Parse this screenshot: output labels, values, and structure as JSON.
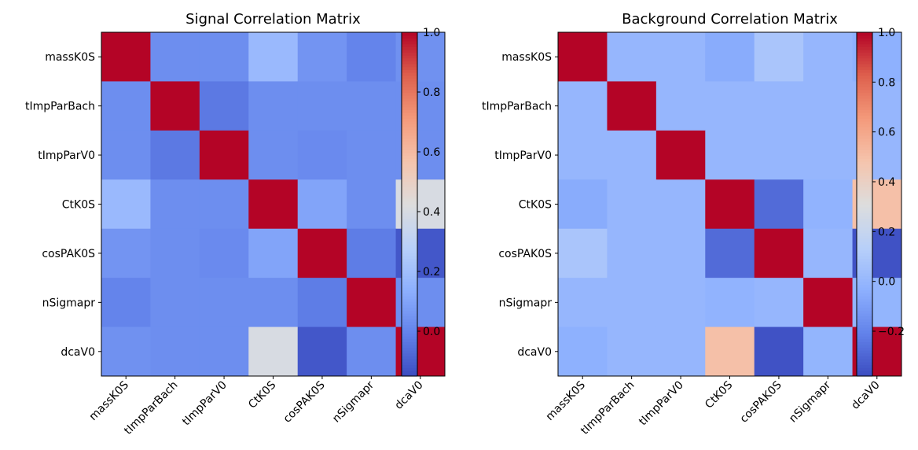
{
  "chart_data": [
    {
      "type": "heatmap",
      "title": "Signal Correlation Matrix",
      "labels": [
        "massK0S",
        "tImpParBach",
        "tImpParV0",
        "CtK0S",
        "cosPAK0S",
        "nSigmapr",
        "dcaV0"
      ],
      "matrix": [
        [
          1.0,
          0.03,
          0.03,
          0.18,
          0.05,
          0.0,
          0.04
        ],
        [
          0.03,
          1.0,
          -0.03,
          0.03,
          0.03,
          0.03,
          0.03
        ],
        [
          0.03,
          -0.03,
          1.0,
          0.03,
          0.02,
          0.03,
          0.03
        ],
        [
          0.18,
          0.03,
          0.03,
          1.0,
          0.1,
          0.03,
          0.4
        ],
        [
          0.05,
          0.03,
          0.02,
          0.1,
          1.0,
          -0.02,
          -0.12
        ],
        [
          0.0,
          0.03,
          0.03,
          0.03,
          -0.02,
          1.0,
          0.03
        ],
        [
          0.04,
          0.03,
          0.03,
          0.4,
          -0.12,
          0.03,
          1.0
        ]
      ],
      "vmin": -0.15,
      "vmax": 1.0,
      "colorbar_ticks": [
        0.0,
        0.2,
        0.4,
        0.6,
        0.8,
        1.0
      ],
      "colorbar_tick_labels": [
        "0.0",
        "0.2",
        "0.4",
        "0.6",
        "0.8",
        "1.0"
      ],
      "colormap": "coolwarm"
    },
    {
      "type": "heatmap",
      "title": "Background Correlation Matrix",
      "labels": [
        "massK0S",
        "tImpParBach",
        "tImpParV0",
        "CtK0S",
        "cosPAK0S",
        "nSigmapr",
        "dcaV0"
      ],
      "matrix": [
        [
          1.0,
          0.0,
          0.0,
          -0.05,
          0.08,
          0.0,
          -0.03
        ],
        [
          0.0,
          1.0,
          0.0,
          0.0,
          0.0,
          0.0,
          0.0
        ],
        [
          0.0,
          0.0,
          1.0,
          0.0,
          0.0,
          0.0,
          0.0
        ],
        [
          -0.05,
          0.0,
          0.0,
          1.0,
          -0.28,
          -0.02,
          0.5
        ],
        [
          0.08,
          0.0,
          0.0,
          -0.28,
          1.0,
          0.0,
          -0.36
        ],
        [
          0.0,
          0.0,
          0.0,
          -0.02,
          0.0,
          1.0,
          -0.01
        ],
        [
          -0.03,
          0.0,
          0.0,
          0.5,
          -0.36,
          -0.01,
          1.0
        ]
      ],
      "vmin": -0.38,
      "vmax": 1.0,
      "colorbar_ticks": [
        -0.2,
        0.0,
        0.2,
        0.4,
        0.6,
        0.8,
        1.0
      ],
      "colorbar_tick_labels": [
        "−0.2",
        "0.0",
        "0.2",
        "0.4",
        "0.6",
        "0.8",
        "1.0"
      ],
      "colormap": "coolwarm"
    }
  ]
}
